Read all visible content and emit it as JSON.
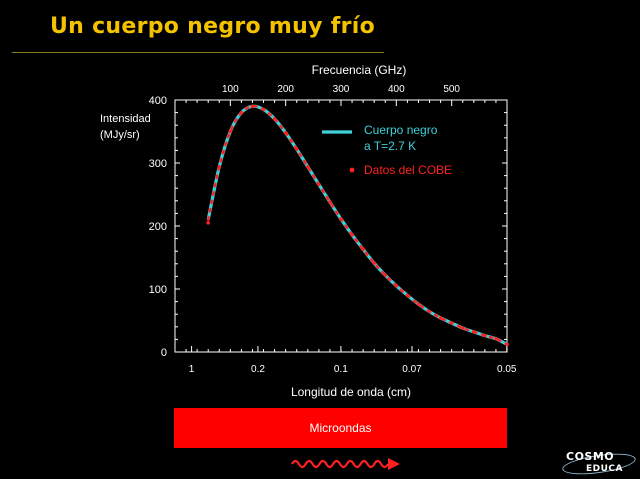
{
  "slide": {
    "title": "Un cuerpo negro muy frío"
  },
  "chart_data": {
    "type": "line",
    "xlabel": "Longitud de onda (cm)",
    "x2label": "Frecuencia (GHz)",
    "ylabel": "Intensidad",
    "ylabel_units": "(MJy/sr)",
    "x_tick_labels": [
      "1",
      "0.2",
      "0.1",
      "0.07",
      "0.05"
    ],
    "x2_tick_labels": [
      "100",
      "200",
      "300",
      "400",
      "500"
    ],
    "x2_ticks_ghz": [
      100,
      200,
      300,
      400,
      500
    ],
    "y_ticks": [
      0,
      100,
      200,
      300,
      400
    ],
    "ylim": [
      0,
      400
    ],
    "frequency_range_ghz": [
      0,
      600
    ],
    "x_tick_wavelengths_cm": [
      1,
      0.2,
      0.1,
      0.07,
      0.05
    ],
    "grid": false,
    "legend_position": "top-right",
    "series": [
      {
        "name": "Cuerpo negro a T=2.7 K",
        "legend_lines": [
          "Cuerpo negro",
          "a T=2.7 K"
        ],
        "style": "line",
        "color": "#3fd0d8",
        "x_ghz": [
          60,
          80,
          100,
          120,
          140,
          160,
          180,
          200,
          220,
          240,
          260,
          280,
          300,
          320,
          340,
          360,
          380,
          400,
          420,
          440,
          460,
          480,
          500,
          520,
          540,
          560,
          580,
          600
        ],
        "y": [
          210,
          294,
          350,
          380,
          390,
          385,
          370,
          348,
          322,
          294,
          266,
          238,
          211,
          186,
          163,
          141,
          122,
          105,
          90,
          76,
          64,
          54,
          46,
          38,
          32,
          26,
          21,
          12
        ]
      },
      {
        "name": "Datos del COBE",
        "style": "points",
        "color": "#ff2020",
        "x_ghz": [
          60,
          80,
          100,
          120,
          140,
          160,
          180,
          200,
          220,
          240,
          260,
          280,
          300,
          320,
          340,
          360,
          380,
          400,
          420,
          440,
          460,
          480,
          500,
          520,
          540,
          560,
          580,
          600
        ],
        "y": [
          205,
          294,
          350,
          380,
          390,
          385,
          370,
          348,
          322,
          294,
          266,
          238,
          211,
          186,
          163,
          141,
          122,
          105,
          90,
          76,
          64,
          54,
          46,
          38,
          32,
          26,
          21,
          12
        ]
      }
    ]
  },
  "band": {
    "label": "Microondas",
    "color": "#ff0000"
  },
  "logo": {
    "line1": "COSMO",
    "line2": "EDUCA"
  }
}
